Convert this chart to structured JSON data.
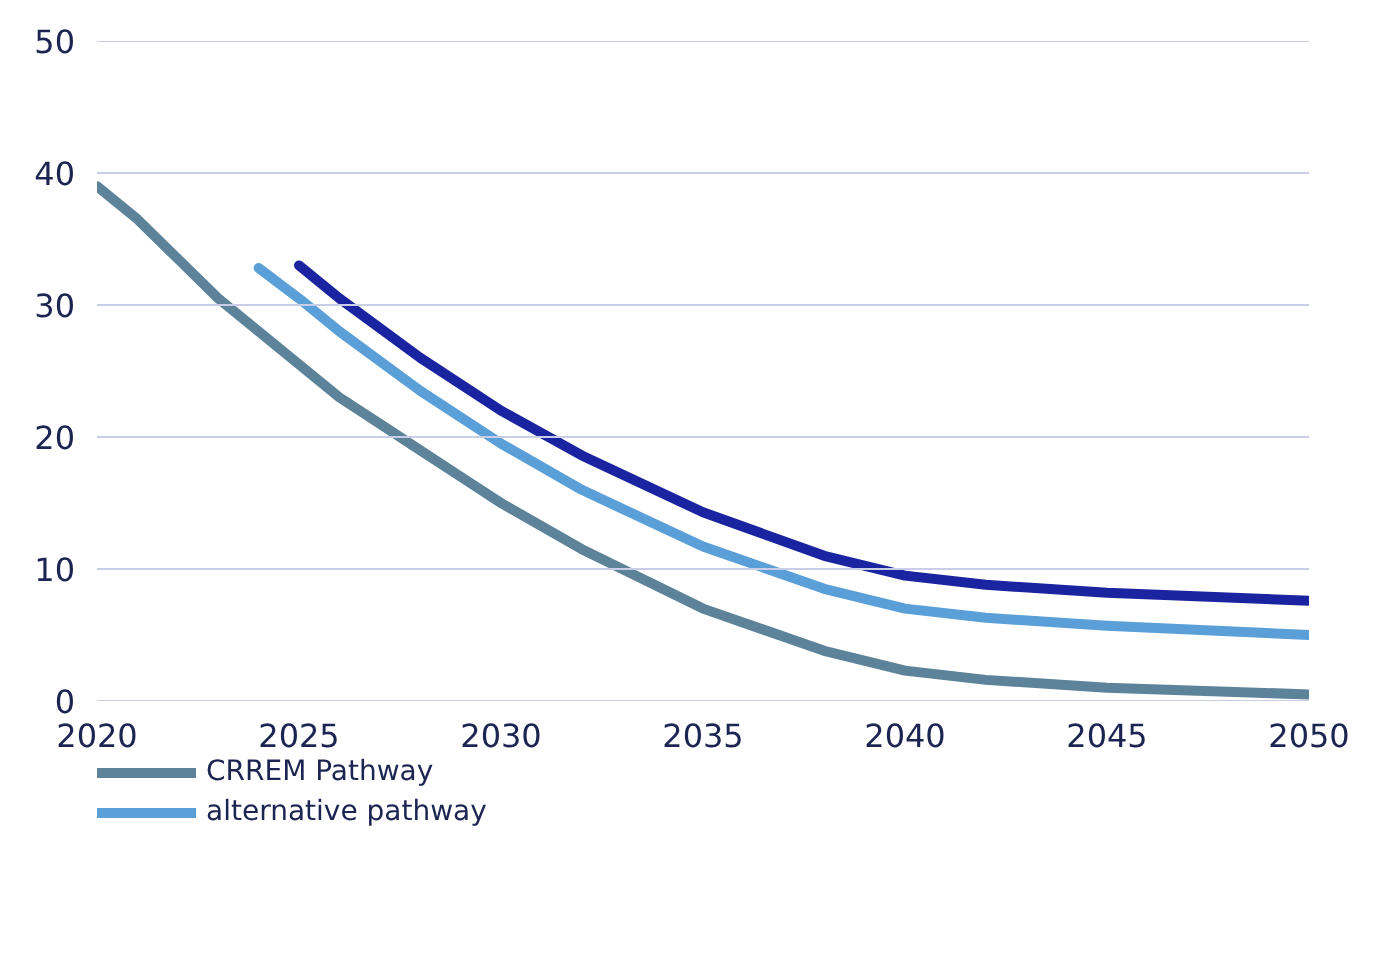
{
  "chart_data": {
    "type": "line",
    "xlim": [
      2020,
      2050
    ],
    "xticks": [
      2020,
      2025,
      2030,
      2035,
      2040,
      2045,
      2050
    ],
    "ylim": [
      0,
      50
    ],
    "yticks": [
      0,
      10,
      20,
      30,
      40,
      50
    ],
    "grid": "y",
    "legend": "bottom",
    "line_style": "solid",
    "marker": "none",
    "series": [
      {
        "name": "CRREM Pathway",
        "color": "#5c8399",
        "x": [
          2020,
          2021,
          2022,
          2023,
          2024,
          2025,
          2026,
          2027,
          2028,
          2029,
          2030,
          2032,
          2035,
          2038,
          2040,
          2042,
          2045,
          2050
        ],
        "values": [
          39,
          36.5,
          33.5,
          30.5,
          28,
          25.5,
          23,
          21,
          19,
          17,
          15,
          11.5,
          7,
          3.8,
          2.3,
          1.6,
          1,
          0.5
        ]
      },
      {
        "name": "alternative pathway",
        "color": "#5a9fd8",
        "x": [
          2024,
          2025,
          2026,
          2028,
          2030,
          2032,
          2035,
          2038,
          2040,
          2042,
          2045,
          2050
        ],
        "values": [
          32.8,
          30.5,
          28,
          23.5,
          19.5,
          16,
          11.7,
          8.5,
          7,
          6.3,
          5.7,
          5
        ]
      },
      {
        "color": "#1b24a0",
        "x": [
          2025,
          2026,
          2028,
          2030,
          2032,
          2035,
          2038,
          2040,
          2042,
          2045,
          2050
        ],
        "values": [
          33,
          30.5,
          26,
          22,
          18.6,
          14.3,
          11,
          9.5,
          8.8,
          8.2,
          7.6
        ]
      }
    ]
  }
}
